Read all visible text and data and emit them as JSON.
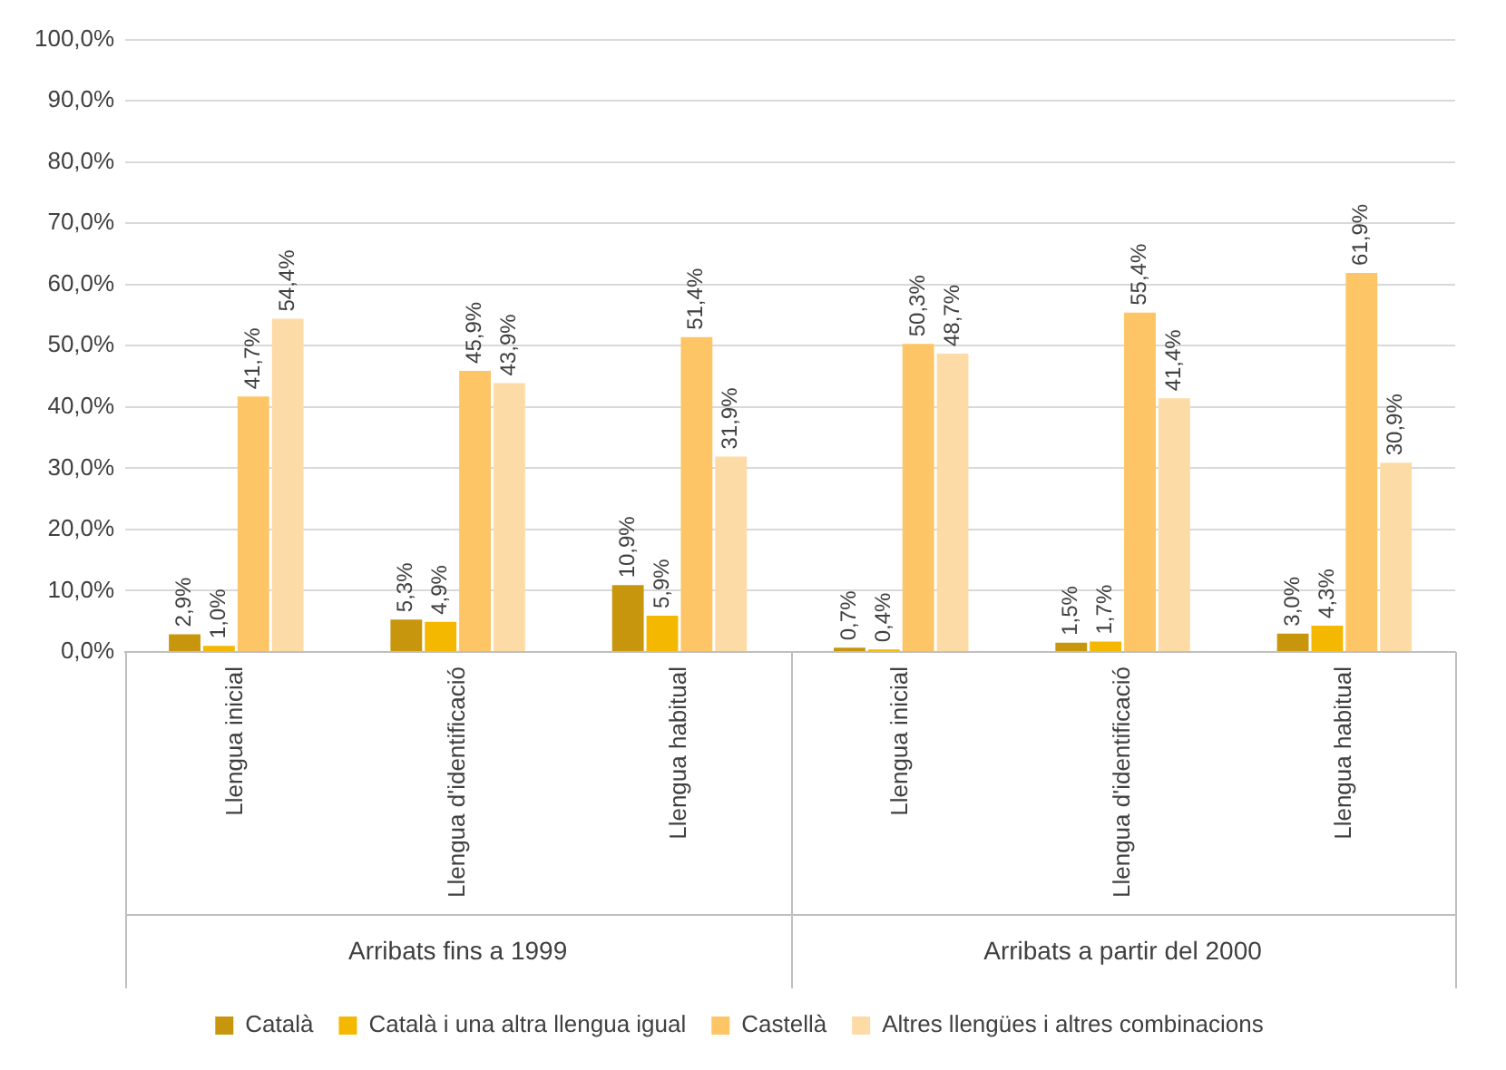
{
  "chart_data": {
    "type": "bar",
    "categories": [
      "Llengua inicial",
      "Llengua d'identificació",
      "Llengua habitual",
      "Llengua inicial",
      "Llengua d'identificació",
      "Llengua habitual"
    ],
    "series": [
      {
        "name": "Català",
        "color": "#c8960c",
        "values": [
          2.9,
          5.3,
          10.9,
          0.7,
          1.5,
          3.0
        ],
        "value_labels": [
          "2,9%",
          "5,3%",
          "10,9%",
          "0,7%",
          "1,5%",
          "3,0%"
        ]
      },
      {
        "name": "Català i una altra llengua igual",
        "color": "#f5b800",
        "values": [
          1.0,
          4.9,
          5.9,
          0.4,
          1.7,
          4.3
        ],
        "value_labels": [
          "1,0%",
          "4,9%",
          "5,9%",
          "0,4%",
          "1,7%",
          "4,3%"
        ]
      },
      {
        "name": "Castellà",
        "color": "#fdc566",
        "values": [
          41.7,
          45.9,
          51.4,
          50.3,
          55.4,
          61.9
        ],
        "value_labels": [
          "41,7%",
          "45,9%",
          "51,4%",
          "50,3%",
          "55,4%",
          "61,9%"
        ]
      },
      {
        "name": "Altres llengües i altres combinacions",
        "color": "#fddba6",
        "values": [
          54.4,
          43.9,
          31.9,
          48.7,
          41.4,
          30.9
        ],
        "value_labels": [
          "54,4%",
          "43,9%",
          "31,9%",
          "48,7%",
          "41,4%",
          "30,9%"
        ]
      }
    ],
    "ylim": [
      0,
      100
    ],
    "yticks": [
      {
        "value": 0,
        "label": "0,0%"
      },
      {
        "value": 10,
        "label": "10,0%"
      },
      {
        "value": 20,
        "label": "20,0%"
      },
      {
        "value": 30,
        "label": "30,0%"
      },
      {
        "value": 40,
        "label": "40,0%"
      },
      {
        "value": 50,
        "label": "50,0%"
      },
      {
        "value": 60,
        "label": "60,0%"
      },
      {
        "value": 70,
        "label": "70,0%"
      },
      {
        "value": 80,
        "label": "80,0%"
      },
      {
        "value": 90,
        "label": "90,0%"
      },
      {
        "value": 100,
        "label": "100,0%"
      }
    ],
    "annotations": [
      "Arribats fins a 1999",
      "Arribats a partir del 2000"
    ],
    "grid": "y",
    "legend": "bottom"
  }
}
